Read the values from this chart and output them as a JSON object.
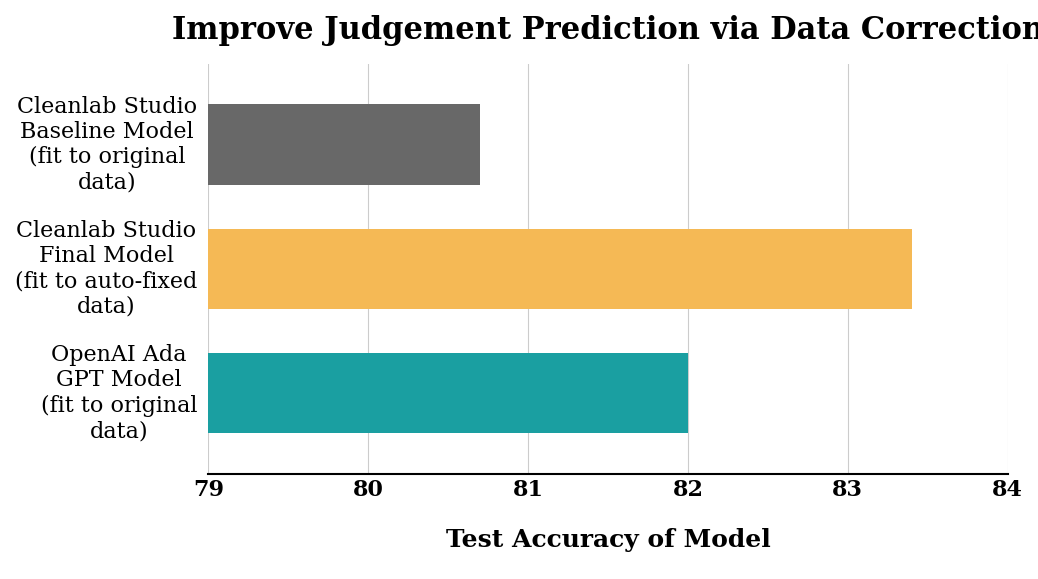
{
  "title": "Improve Judgement Prediction via Data Correction",
  "xlabel": "Test Accuracy of Model",
  "categories": [
    "Cleanlab Studio\nBaseline Model\n(fit to original\ndata)",
    "Cleanlab Studio\nFinal Model\n(fit to auto-fixed\ndata)",
    "OpenAI Ada\nGPT Model\n(fit to original\ndata)"
  ],
  "values": [
    80.7,
    83.4,
    82.0
  ],
  "colors": [
    "#686868",
    "#F5B955",
    "#1A9FA1"
  ],
  "xlim": [
    79,
    84
  ],
  "xticks": [
    79,
    80,
    81,
    82,
    83,
    84
  ],
  "title_fontsize": 22,
  "label_fontsize": 18,
  "tick_fontsize": 16,
  "bar_height": 0.65,
  "background_color": "#ffffff"
}
